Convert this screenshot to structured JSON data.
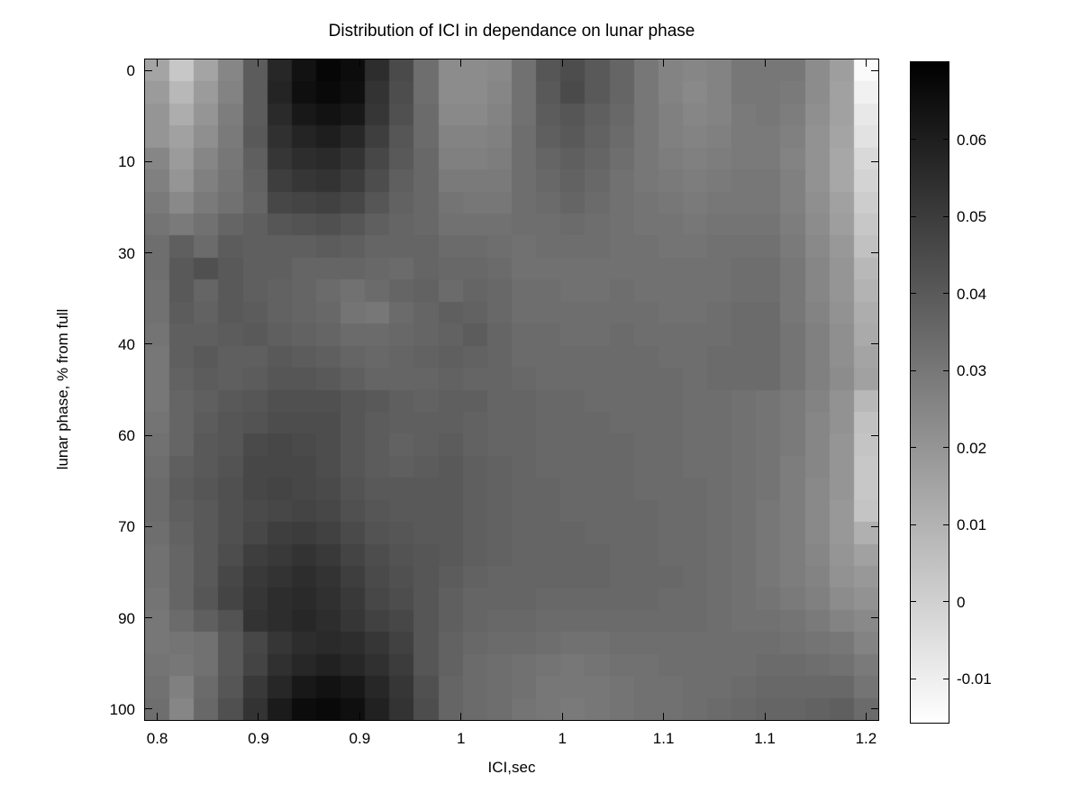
{
  "chart_data": {
    "type": "heatmap",
    "title": "Distribution of ICI in dependance on lunar phase",
    "xlabel": "ICI,sec",
    "ylabel": "lunar phase, % from full",
    "x_tick_labels": [
      "0.8",
      "0.9",
      "0.9",
      "1",
      "1",
      "1.1",
      "1.1",
      "1.2"
    ],
    "y_tick_labels": [
      "0",
      "10",
      "30",
      "40",
      "60",
      "70",
      "90",
      "100"
    ],
    "x_range": [
      0.8,
      1.2
    ],
    "y_range": [
      0,
      100
    ],
    "grid_rows": 30,
    "grid_cols": 30,
    "legend_position": "right-colorbar",
    "grid": false,
    "colorbar": {
      "tick_labels": [
        "0.06",
        "0.05",
        "0.04",
        "0.03",
        "0.02",
        "0.01",
        "0",
        "-0.01"
      ],
      "vmin": -0.0157,
      "vmax": 0.07,
      "colormap": "inverted-gray-black-is-high"
    },
    "values": [
      [
        0.015,
        0.003,
        0.015,
        0.025,
        0.039,
        0.057,
        0.064,
        0.068,
        0.066,
        0.055,
        0.045,
        0.033,
        0.023,
        0.023,
        0.024,
        0.032,
        0.041,
        0.044,
        0.04,
        0.036,
        0.03,
        0.026,
        0.025,
        0.026,
        0.03,
        0.03,
        0.03,
        0.023,
        0.017,
        -0.014
      ],
      [
        0.018,
        0.008,
        0.018,
        0.026,
        0.039,
        0.058,
        0.065,
        0.067,
        0.065,
        0.053,
        0.044,
        0.033,
        0.023,
        0.023,
        0.025,
        0.032,
        0.04,
        0.045,
        0.04,
        0.036,
        0.03,
        0.026,
        0.024,
        0.026,
        0.03,
        0.03,
        0.029,
        0.023,
        0.016,
        -0.011
      ],
      [
        0.02,
        0.012,
        0.02,
        0.028,
        0.039,
        0.056,
        0.062,
        0.064,
        0.062,
        0.052,
        0.043,
        0.034,
        0.024,
        0.024,
        0.026,
        0.032,
        0.039,
        0.041,
        0.038,
        0.035,
        0.03,
        0.027,
        0.025,
        0.026,
        0.029,
        0.03,
        0.028,
        0.022,
        0.016,
        -0.008
      ],
      [
        0.02,
        0.016,
        0.022,
        0.029,
        0.04,
        0.054,
        0.058,
        0.06,
        0.057,
        0.049,
        0.041,
        0.034,
        0.026,
        0.026,
        0.027,
        0.033,
        0.038,
        0.04,
        0.037,
        0.034,
        0.03,
        0.027,
        0.026,
        0.027,
        0.029,
        0.029,
        0.027,
        0.021,
        0.015,
        -0.006
      ],
      [
        0.025,
        0.018,
        0.025,
        0.03,
        0.038,
        0.052,
        0.055,
        0.056,
        0.053,
        0.046,
        0.04,
        0.035,
        0.027,
        0.027,
        0.028,
        0.033,
        0.036,
        0.038,
        0.036,
        0.033,
        0.03,
        0.028,
        0.027,
        0.028,
        0.029,
        0.029,
        0.026,
        0.021,
        0.014,
        -0.003
      ],
      [
        0.027,
        0.02,
        0.027,
        0.031,
        0.037,
        0.049,
        0.052,
        0.053,
        0.05,
        0.044,
        0.038,
        0.035,
        0.029,
        0.029,
        0.029,
        0.033,
        0.035,
        0.037,
        0.035,
        0.032,
        0.03,
        0.029,
        0.028,
        0.029,
        0.03,
        0.03,
        0.027,
        0.021,
        0.014,
        -0.001
      ],
      [
        0.029,
        0.024,
        0.029,
        0.032,
        0.036,
        0.046,
        0.047,
        0.048,
        0.046,
        0.041,
        0.037,
        0.035,
        0.031,
        0.03,
        0.03,
        0.033,
        0.034,
        0.036,
        0.034,
        0.032,
        0.031,
        0.03,
        0.029,
        0.03,
        0.03,
        0.03,
        0.027,
        0.022,
        0.016,
        0.001
      ],
      [
        0.031,
        0.029,
        0.032,
        0.036,
        0.038,
        0.041,
        0.042,
        0.043,
        0.041,
        0.038,
        0.036,
        0.035,
        0.032,
        0.032,
        0.032,
        0.033,
        0.033,
        0.034,
        0.033,
        0.032,
        0.031,
        0.031,
        0.03,
        0.031,
        0.031,
        0.031,
        0.028,
        0.023,
        0.017,
        0.003
      ],
      [
        0.033,
        0.038,
        0.034,
        0.039,
        0.038,
        0.038,
        0.038,
        0.039,
        0.038,
        0.036,
        0.036,
        0.036,
        0.034,
        0.034,
        0.033,
        0.032,
        0.033,
        0.033,
        0.033,
        0.032,
        0.032,
        0.031,
        0.031,
        0.032,
        0.032,
        0.032,
        0.029,
        0.024,
        0.019,
        0.005
      ],
      [
        0.033,
        0.04,
        0.043,
        0.04,
        0.038,
        0.038,
        0.036,
        0.036,
        0.036,
        0.035,
        0.034,
        0.036,
        0.035,
        0.035,
        0.034,
        0.032,
        0.032,
        0.032,
        0.032,
        0.032,
        0.032,
        0.032,
        0.032,
        0.032,
        0.033,
        0.033,
        0.03,
        0.025,
        0.02,
        0.008
      ],
      [
        0.032,
        0.04,
        0.036,
        0.04,
        0.038,
        0.037,
        0.036,
        0.034,
        0.032,
        0.034,
        0.036,
        0.037,
        0.034,
        0.036,
        0.035,
        0.033,
        0.033,
        0.032,
        0.032,
        0.033,
        0.032,
        0.032,
        0.032,
        0.032,
        0.033,
        0.033,
        0.03,
        0.025,
        0.02,
        0.01
      ],
      [
        0.032,
        0.039,
        0.037,
        0.04,
        0.039,
        0.037,
        0.036,
        0.035,
        0.031,
        0.03,
        0.034,
        0.036,
        0.038,
        0.037,
        0.035,
        0.033,
        0.033,
        0.033,
        0.033,
        0.033,
        0.033,
        0.032,
        0.032,
        0.033,
        0.034,
        0.034,
        0.03,
        0.026,
        0.021,
        0.012
      ],
      [
        0.031,
        0.038,
        0.038,
        0.039,
        0.04,
        0.038,
        0.037,
        0.036,
        0.034,
        0.034,
        0.035,
        0.036,
        0.037,
        0.039,
        0.036,
        0.034,
        0.034,
        0.033,
        0.033,
        0.034,
        0.033,
        0.033,
        0.033,
        0.033,
        0.034,
        0.034,
        0.031,
        0.027,
        0.022,
        0.013
      ],
      [
        0.03,
        0.038,
        0.04,
        0.038,
        0.038,
        0.04,
        0.039,
        0.038,
        0.036,
        0.035,
        0.036,
        0.037,
        0.038,
        0.037,
        0.036,
        0.034,
        0.034,
        0.034,
        0.034,
        0.034,
        0.034,
        0.033,
        0.033,
        0.034,
        0.034,
        0.034,
        0.031,
        0.027,
        0.022,
        0.015
      ],
      [
        0.03,
        0.037,
        0.039,
        0.038,
        0.039,
        0.041,
        0.041,
        0.04,
        0.038,
        0.036,
        0.036,
        0.036,
        0.037,
        0.036,
        0.036,
        0.035,
        0.034,
        0.034,
        0.034,
        0.034,
        0.034,
        0.034,
        0.033,
        0.034,
        0.034,
        0.034,
        0.031,
        0.027,
        0.023,
        0.016
      ],
      [
        0.03,
        0.036,
        0.038,
        0.04,
        0.041,
        0.043,
        0.043,
        0.043,
        0.041,
        0.04,
        0.038,
        0.037,
        0.038,
        0.038,
        0.036,
        0.036,
        0.035,
        0.035,
        0.034,
        0.034,
        0.034,
        0.034,
        0.033,
        0.033,
        0.032,
        0.031,
        0.029,
        0.026,
        0.021,
        0.008
      ],
      [
        0.031,
        0.036,
        0.039,
        0.041,
        0.042,
        0.044,
        0.044,
        0.044,
        0.041,
        0.039,
        0.038,
        0.038,
        0.038,
        0.037,
        0.036,
        0.036,
        0.035,
        0.035,
        0.035,
        0.034,
        0.034,
        0.034,
        0.033,
        0.033,
        0.032,
        0.031,
        0.029,
        0.025,
        0.021,
        0.005
      ],
      [
        0.032,
        0.036,
        0.04,
        0.041,
        0.045,
        0.046,
        0.045,
        0.044,
        0.041,
        0.039,
        0.037,
        0.038,
        0.039,
        0.037,
        0.036,
        0.036,
        0.035,
        0.035,
        0.035,
        0.035,
        0.034,
        0.034,
        0.033,
        0.033,
        0.032,
        0.031,
        0.029,
        0.025,
        0.02,
        0.004
      ],
      [
        0.033,
        0.038,
        0.04,
        0.042,
        0.046,
        0.046,
        0.046,
        0.044,
        0.041,
        0.039,
        0.038,
        0.039,
        0.04,
        0.038,
        0.037,
        0.036,
        0.035,
        0.035,
        0.035,
        0.035,
        0.034,
        0.034,
        0.033,
        0.033,
        0.032,
        0.031,
        0.028,
        0.025,
        0.02,
        0.003
      ],
      [
        0.034,
        0.039,
        0.041,
        0.043,
        0.046,
        0.047,
        0.046,
        0.045,
        0.042,
        0.04,
        0.04,
        0.04,
        0.04,
        0.038,
        0.037,
        0.036,
        0.036,
        0.035,
        0.035,
        0.035,
        0.034,
        0.034,
        0.034,
        0.033,
        0.032,
        0.031,
        0.028,
        0.024,
        0.02,
        0.003
      ],
      [
        0.034,
        0.038,
        0.04,
        0.043,
        0.045,
        0.046,
        0.047,
        0.046,
        0.043,
        0.041,
        0.04,
        0.04,
        0.04,
        0.038,
        0.037,
        0.036,
        0.036,
        0.035,
        0.035,
        0.035,
        0.035,
        0.034,
        0.034,
        0.033,
        0.032,
        0.03,
        0.028,
        0.024,
        0.019,
        0.004
      ],
      [
        0.033,
        0.037,
        0.04,
        0.043,
        0.046,
        0.049,
        0.05,
        0.048,
        0.045,
        0.042,
        0.041,
        0.04,
        0.04,
        0.038,
        0.037,
        0.036,
        0.036,
        0.036,
        0.035,
        0.035,
        0.035,
        0.034,
        0.034,
        0.033,
        0.032,
        0.03,
        0.028,
        0.024,
        0.019,
        0.011
      ],
      [
        0.032,
        0.036,
        0.04,
        0.044,
        0.049,
        0.051,
        0.053,
        0.051,
        0.047,
        0.044,
        0.042,
        0.041,
        0.04,
        0.038,
        0.037,
        0.036,
        0.036,
        0.036,
        0.036,
        0.035,
        0.035,
        0.034,
        0.034,
        0.033,
        0.032,
        0.03,
        0.028,
        0.025,
        0.02,
        0.016
      ],
      [
        0.032,
        0.036,
        0.04,
        0.046,
        0.051,
        0.053,
        0.055,
        0.053,
        0.049,
        0.045,
        0.043,
        0.041,
        0.039,
        0.037,
        0.036,
        0.036,
        0.036,
        0.036,
        0.036,
        0.035,
        0.035,
        0.035,
        0.034,
        0.033,
        0.032,
        0.03,
        0.028,
        0.026,
        0.021,
        0.019
      ],
      [
        0.031,
        0.036,
        0.041,
        0.047,
        0.052,
        0.055,
        0.056,
        0.054,
        0.051,
        0.046,
        0.044,
        0.041,
        0.038,
        0.036,
        0.036,
        0.036,
        0.035,
        0.035,
        0.035,
        0.035,
        0.035,
        0.034,
        0.034,
        0.033,
        0.032,
        0.031,
        0.029,
        0.027,
        0.023,
        0.021
      ],
      [
        0.03,
        0.034,
        0.038,
        0.042,
        0.053,
        0.055,
        0.057,
        0.055,
        0.052,
        0.048,
        0.046,
        0.041,
        0.038,
        0.036,
        0.035,
        0.035,
        0.034,
        0.034,
        0.034,
        0.034,
        0.034,
        0.034,
        0.034,
        0.033,
        0.032,
        0.032,
        0.031,
        0.029,
        0.026,
        0.024
      ],
      [
        0.03,
        0.031,
        0.032,
        0.04,
        0.046,
        0.052,
        0.055,
        0.056,
        0.055,
        0.052,
        0.048,
        0.041,
        0.037,
        0.035,
        0.034,
        0.034,
        0.033,
        0.032,
        0.032,
        0.033,
        0.033,
        0.033,
        0.033,
        0.033,
        0.033,
        0.033,
        0.032,
        0.031,
        0.03,
        0.026
      ],
      [
        0.031,
        0.03,
        0.032,
        0.04,
        0.047,
        0.054,
        0.057,
        0.059,
        0.057,
        0.054,
        0.05,
        0.041,
        0.037,
        0.034,
        0.033,
        0.032,
        0.031,
        0.03,
        0.031,
        0.032,
        0.032,
        0.033,
        0.033,
        0.033,
        0.033,
        0.034,
        0.034,
        0.033,
        0.032,
        0.029
      ],
      [
        0.032,
        0.027,
        0.034,
        0.041,
        0.051,
        0.057,
        0.062,
        0.064,
        0.062,
        0.057,
        0.052,
        0.043,
        0.036,
        0.034,
        0.033,
        0.032,
        0.03,
        0.03,
        0.03,
        0.031,
        0.032,
        0.032,
        0.033,
        0.033,
        0.034,
        0.035,
        0.035,
        0.035,
        0.035,
        0.031
      ],
      [
        0.033,
        0.025,
        0.035,
        0.043,
        0.053,
        0.061,
        0.066,
        0.067,
        0.065,
        0.059,
        0.053,
        0.044,
        0.036,
        0.034,
        0.033,
        0.031,
        0.03,
        0.029,
        0.03,
        0.031,
        0.032,
        0.032,
        0.033,
        0.034,
        0.035,
        0.036,
        0.036,
        0.037,
        0.038,
        0.034
      ]
    ]
  }
}
